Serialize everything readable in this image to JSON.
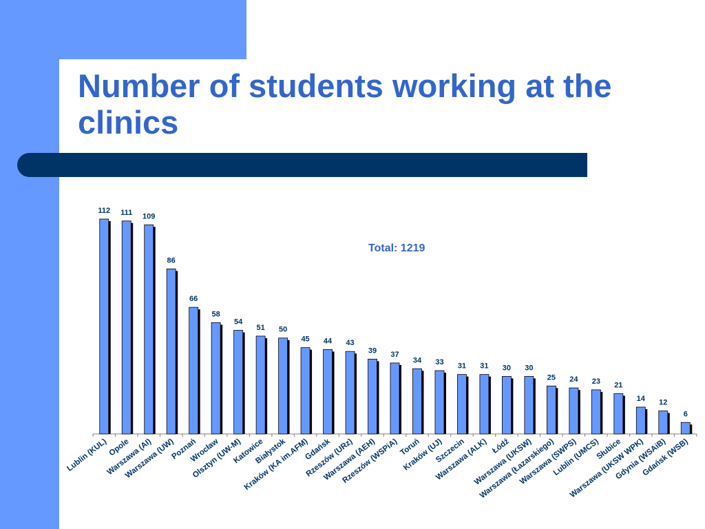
{
  "slide": {
    "title": "Number of students working at the clinics",
    "accent_color": "#6699ff",
    "title_color": "#3366cc",
    "bar_color": "#003366"
  },
  "chart_data": {
    "type": "bar",
    "title": "",
    "annotation": "Total: 1219",
    "categories": [
      "Lublin (KUL)",
      "Opole",
      "Warszawa (AI)",
      "Warszawa (UW)",
      "Poznań",
      "Wrocław",
      "Olsztyn (UW-M)",
      "Katowice",
      "Białystok",
      "Kraków (KA im.AFM)",
      "Gdańsk",
      "Rzeszów (URz)",
      "Warszawa (AEH)",
      "Rzeszów (WSPiA)",
      "Toruń",
      "Kraków (UJ)",
      "Szczecin",
      "Warszawa (ALK)",
      "Łódź",
      "Warszawa (UKSW)",
      "Warszawa (Łazarskiego)",
      "Warszawa (SWPS)",
      "Lublin (UMCS)",
      "Słubice",
      "Warszawa (UKSW WPK)",
      "Gdynia (WSAiB)",
      "Gdańsk (WSB)"
    ],
    "values": [
      112,
      111,
      109,
      86,
      66,
      58,
      54,
      51,
      50,
      45,
      44,
      43,
      39,
      37,
      34,
      33,
      31,
      31,
      30,
      30,
      25,
      24,
      23,
      21,
      14,
      12,
      6
    ],
    "ylim": [
      0,
      112
    ],
    "bar_color": "#6699ff",
    "grid": false,
    "legend": "none",
    "xlabel": "",
    "ylabel": ""
  }
}
